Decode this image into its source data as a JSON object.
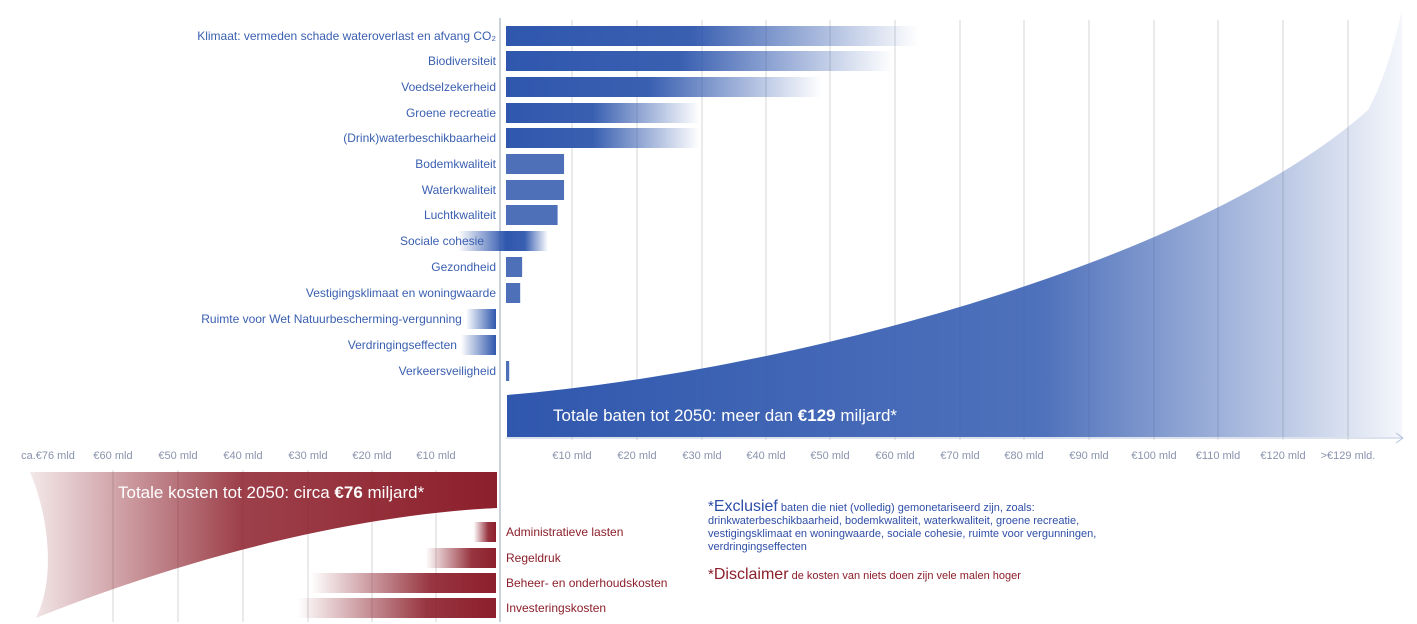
{
  "colors": {
    "benefit": "#2f57ad",
    "cost": "#8c1f2b",
    "grid": "#d4d4d4",
    "tick": "#8a93ad",
    "axis": "#b8c3dd"
  },
  "chart_data": {
    "type": "bar",
    "benefits": {
      "categories": [
        "Klimaat: vermeden schade wateroverlast en afvang CO₂",
        "Biodiversiteit",
        "Voedselzekerheid",
        "Groene recreatie",
        "(Drink)waterbeschikbaarheid",
        "Bodemkwaliteit",
        "Waterkwaliteit",
        "Luchtkwaliteit",
        "Sociale cohesie",
        "Gezondheid",
        "Vestigingsklimaat en woningwaarde",
        "Ruimte voor Wet Natuurbescherming-vergunning",
        "Verdringingseffecten",
        "Verkeersveiligheid"
      ],
      "values": [
        64,
        60,
        49,
        30,
        30,
        9,
        9,
        8,
        6,
        2.5,
        2.2,
        -1.5,
        -1.8,
        0.5
      ]
    },
    "costs": {
      "categories": [
        "Administratieve lasten",
        "Regeldruk",
        "Beheer- en onderhoudskosten",
        "Investeringskosten"
      ],
      "values": [
        3.5,
        11,
        29,
        31
      ]
    },
    "x_ticks_benefit": [
      "€10 mld",
      "€20 mld",
      "€30 mld",
      "€40 mld",
      "€50 mld",
      "€60 mld",
      "€70 mld",
      "€80 mld",
      "€90 mld",
      "€100 mld",
      "€110 mld",
      "€120 mld",
      ">€129 mld."
    ],
    "x_ticks_cost": [
      "ca.€76 mld",
      "€60 mld",
      "€50 mld",
      "€40 mld",
      "€30 mld",
      "€20 mld",
      "€10 mld"
    ],
    "benefit_total": {
      "prefix": "Totale baten tot 2050: meer dan ",
      "amount": "€129",
      "suffix": " miljard*"
    },
    "cost_total": {
      "prefix": "Totale kosten tot 2050:  circa ",
      "amount": "€76",
      "suffix": " miljard*"
    },
    "grid": true
  },
  "notes": {
    "exclusief_star": "*",
    "exclusief_title": "Exclusief",
    "exclusief_text": " baten die niet (volledig) gemonetariseerd zijn, zoals: drinkwaterbeschikbaarheid, bodemkwaliteit, waterkwaliteit, groene recreatie, vestigingsklimaat en woningwaarde, sociale cohesie, ruimte voor vergunningen, verdringingseffecten",
    "disclaimer_star": "*",
    "disclaimer_title": "Disclaimer",
    "disclaimer_text": " de kosten van niets doen zijn vele malen hoger"
  }
}
